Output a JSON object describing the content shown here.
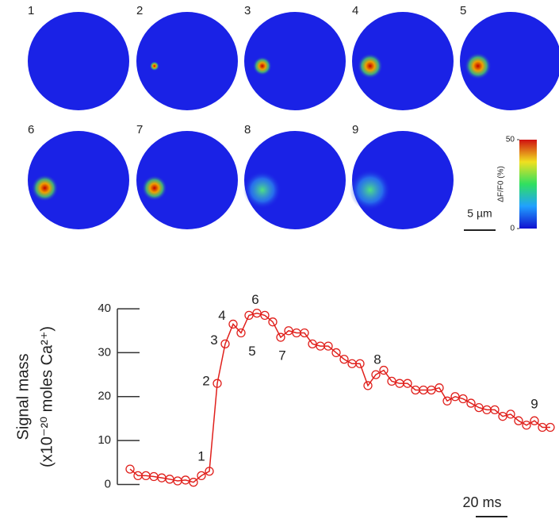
{
  "panels": {
    "labels": [
      "1",
      "2",
      "3",
      "4",
      "5",
      "6",
      "7",
      "8",
      "9"
    ],
    "colorbar": {
      "title": "ΔF/F0 (%)",
      "lim": [
        0,
        50
      ],
      "ticks": [
        0,
        50
      ]
    },
    "scale_bar": "5 µm"
  },
  "chart_data": {
    "type": "line",
    "y_label": [
      "Signal mass",
      "(x10⁻²⁰ moles Ca²⁺)"
    ],
    "x": [
      0,
      5,
      10,
      15,
      20,
      25,
      30,
      35,
      40,
      45,
      50,
      55,
      60,
      65,
      70,
      75,
      80,
      85,
      90,
      95,
      100,
      105,
      110,
      115,
      120,
      125,
      130,
      135,
      140,
      145,
      150,
      155,
      160,
      165,
      170,
      175,
      180,
      185,
      190,
      195,
      200,
      205,
      210,
      215,
      220,
      225,
      230,
      235,
      240,
      245,
      250,
      255,
      260,
      265
    ],
    "series": [
      {
        "color": "#e0201c",
        "values": [
          3.5,
          2,
          2,
          1.8,
          1.5,
          1.2,
          0.8,
          1,
          0.5,
          2,
          3,
          23,
          32,
          36.5,
          34.5,
          38.5,
          39,
          38.5,
          37,
          33.5,
          35,
          34.5,
          34.5,
          32,
          31.5,
          31.5,
          30,
          28.5,
          27.5,
          27.5,
          22.5,
          25,
          26,
          23.5,
          23,
          23,
          21.5,
          21.5,
          21.5,
          22,
          19,
          20,
          19.5,
          18.5,
          17.5,
          17,
          17,
          15.5,
          16,
          14.5,
          13.5,
          14.5,
          13,
          13
        ]
      }
    ],
    "xlim": [
      -2,
      268
    ],
    "ylim": [
      -1,
      42
    ],
    "yticks": [
      0,
      10,
      20,
      30,
      40
    ],
    "annotations": [
      {
        "text": "1",
        "x": 50
      },
      {
        "text": "2",
        "x": 55
      },
      {
        "text": "3",
        "x": 60
      },
      {
        "text": "4",
        "x": 65
      },
      {
        "text": "5",
        "x": 70
      },
      {
        "text": "6",
        "x": 80
      },
      {
        "text": "7",
        "x": 95
      },
      {
        "text": "8",
        "x": 155
      },
      {
        "text": "9",
        "x": 255
      }
    ],
    "scale_bar": {
      "label": "20 ms",
      "value": 20
    }
  }
}
